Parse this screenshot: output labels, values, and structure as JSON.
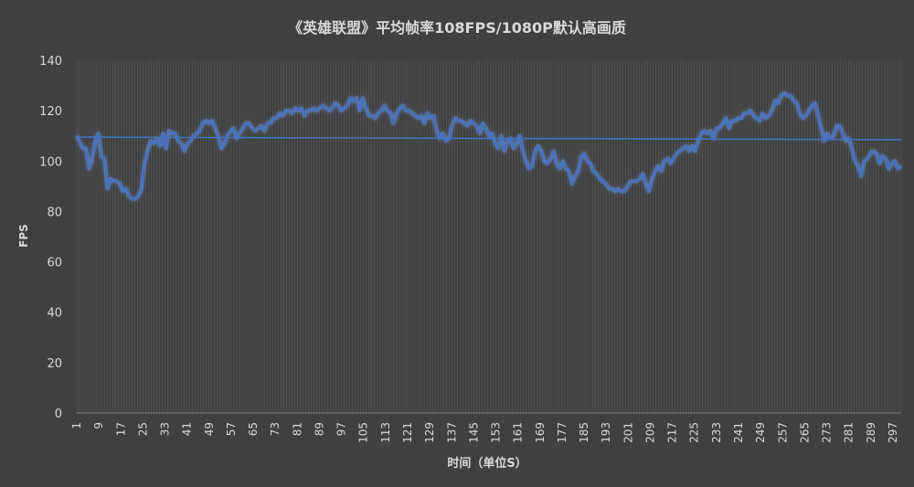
{
  "chart_data": {
    "type": "line",
    "title": "《英雄联盟》平均帧率108FPS/1080P默认高画质",
    "xlabel": "时间（单位S）",
    "ylabel": "FPS",
    "xlim": [
      1,
      300
    ],
    "ylim": [
      0,
      140
    ],
    "y_ticks": [
      0,
      20,
      40,
      60,
      80,
      100,
      120,
      140
    ],
    "x_tick_labels": [
      1,
      9,
      17,
      25,
      33,
      41,
      49,
      57,
      65,
      73,
      81,
      89,
      97,
      105,
      113,
      121,
      129,
      137,
      145,
      153,
      161,
      169,
      177,
      185,
      193,
      201,
      209,
      217,
      225,
      233,
      241,
      249,
      257,
      265,
      273,
      281,
      289,
      297
    ],
    "grid": "vertical-minor",
    "colors": {
      "background": "#404040",
      "grid": "#5a5a5a",
      "series": "#4472c4",
      "glow": "#6f9df0",
      "text": "#d9d9d9"
    },
    "series": [
      {
        "key_points": [
          [
            1,
            110
          ],
          [
            3,
            105
          ],
          [
            4,
            105
          ],
          [
            5,
            97
          ],
          [
            6,
            101
          ],
          [
            7,
            108
          ],
          [
            8,
            111
          ],
          [
            9,
            102
          ],
          [
            10,
            101
          ],
          [
            11,
            89
          ],
          [
            12,
            93
          ],
          [
            13,
            92
          ],
          [
            14,
            92
          ],
          [
            15,
            91
          ],
          [
            16,
            88
          ],
          [
            17,
            89
          ],
          [
            18,
            86
          ],
          [
            19,
            85
          ],
          [
            20,
            85
          ],
          [
            21,
            86
          ],
          [
            22,
            89
          ],
          [
            23,
            99
          ],
          [
            24,
            104
          ],
          [
            25,
            108
          ],
          [
            26,
            107
          ],
          [
            27,
            109
          ],
          [
            28,
            106
          ],
          [
            29,
            111
          ],
          [
            30,
            105
          ],
          [
            31,
            112
          ],
          [
            32,
            111
          ],
          [
            33,
            111
          ],
          [
            34,
            108
          ],
          [
            35,
            107
          ],
          [
            36,
            104
          ],
          [
            37,
            107
          ],
          [
            38,
            108
          ],
          [
            39,
            110
          ],
          [
            40,
            111
          ],
          [
            41,
            112
          ],
          [
            42,
            115
          ],
          [
            43,
            116
          ],
          [
            44,
            115
          ],
          [
            45,
            116
          ],
          [
            46,
            113
          ],
          [
            47,
            110
          ],
          [
            48,
            105
          ],
          [
            49,
            107
          ],
          [
            50,
            110
          ],
          [
            51,
            112
          ],
          [
            52,
            113
          ],
          [
            53,
            109
          ],
          [
            54,
            111
          ],
          [
            55,
            113
          ],
          [
            56,
            115
          ],
          [
            57,
            115
          ],
          [
            58,
            113
          ],
          [
            59,
            112
          ],
          [
            60,
            113
          ],
          [
            61,
            114
          ],
          [
            62,
            112
          ],
          [
            63,
            115
          ],
          [
            64,
            115
          ],
          [
            65,
            117
          ],
          [
            66,
            117
          ],
          [
            67,
            119
          ],
          [
            68,
            118
          ],
          [
            69,
            120
          ],
          [
            70,
            120
          ],
          [
            71,
            119
          ],
          [
            72,
            121
          ],
          [
            73,
            120
          ],
          [
            74,
            121
          ],
          [
            75,
            118
          ],
          [
            76,
            120
          ],
          [
            77,
            120
          ],
          [
            78,
            121
          ],
          [
            79,
            120
          ],
          [
            80,
            121
          ],
          [
            81,
            122
          ],
          [
            82,
            121
          ],
          [
            83,
            120
          ],
          [
            84,
            121
          ],
          [
            85,
            123
          ],
          [
            86,
            122
          ],
          [
            87,
            120
          ],
          [
            88,
            121
          ],
          [
            89,
            122
          ],
          [
            90,
            125
          ],
          [
            91,
            124
          ],
          [
            92,
            125
          ],
          [
            93,
            120
          ],
          [
            94,
            125
          ],
          [
            95,
            121
          ],
          [
            96,
            118
          ],
          [
            97,
            118
          ],
          [
            98,
            117
          ],
          [
            99,
            119
          ],
          [
            100,
            120
          ],
          [
            101,
            122
          ],
          [
            102,
            120
          ],
          [
            103,
            119
          ],
          [
            104,
            115
          ],
          [
            105,
            119
          ],
          [
            106,
            121
          ],
          [
            107,
            122
          ],
          [
            108,
            120
          ],
          [
            109,
            120
          ],
          [
            110,
            119
          ],
          [
            111,
            118
          ],
          [
            112,
            117
          ],
          [
            113,
            118
          ],
          [
            114,
            115
          ],
          [
            115,
            119
          ],
          [
            116,
            117
          ],
          [
            117,
            118
          ],
          [
            118,
            112
          ],
          [
            119,
            109
          ],
          [
            120,
            111
          ],
          [
            121,
            108
          ],
          [
            122,
            109
          ],
          [
            123,
            114
          ],
          [
            124,
            117
          ],
          [
            125,
            116
          ],
          [
            126,
            116
          ],
          [
            127,
            115
          ],
          [
            128,
            114
          ],
          [
            129,
            116
          ],
          [
            130,
            115
          ],
          [
            131,
            114
          ],
          [
            132,
            111
          ],
          [
            133,
            115
          ],
          [
            134,
            113
          ],
          [
            135,
            110
          ],
          [
            136,
            111
          ],
          [
            137,
            107
          ],
          [
            138,
            105
          ],
          [
            139,
            110
          ],
          [
            140,
            104
          ],
          [
            141,
            108
          ],
          [
            142,
            109
          ],
          [
            143,
            105
          ],
          [
            144,
            107
          ],
          [
            145,
            110
          ],
          [
            146,
            104
          ],
          [
            147,
            100
          ],
          [
            148,
            97
          ],
          [
            149,
            98
          ],
          [
            150,
            104
          ],
          [
            151,
            106
          ],
          [
            152,
            104
          ],
          [
            153,
            100
          ],
          [
            154,
            99
          ],
          [
            155,
            101
          ],
          [
            156,
            104
          ],
          [
            157,
            99
          ],
          [
            158,
            97
          ],
          [
            159,
            100
          ],
          [
            160,
            97
          ],
          [
            161,
            96
          ],
          [
            162,
            91
          ],
          [
            163,
            94
          ],
          [
            164,
            96
          ],
          [
            165,
            102
          ],
          [
            166,
            103
          ],
          [
            167,
            100
          ],
          [
            168,
            99
          ],
          [
            169,
            96
          ],
          [
            170,
            95
          ],
          [
            171,
            93
          ],
          [
            172,
            92
          ],
          [
            173,
            91
          ],
          [
            174,
            89
          ],
          [
            175,
            89
          ],
          [
            176,
            88
          ],
          [
            177,
            89
          ],
          [
            178,
            88
          ],
          [
            179,
            88
          ],
          [
            180,
            90
          ],
          [
            181,
            92
          ],
          [
            182,
            92
          ],
          [
            183,
            92
          ],
          [
            184,
            93
          ],
          [
            185,
            95
          ],
          [
            186,
            91
          ],
          [
            187,
            88
          ],
          [
            188,
            93
          ],
          [
            189,
            96
          ],
          [
            190,
            98
          ],
          [
            191,
            96
          ],
          [
            192,
            100
          ],
          [
            193,
            101
          ],
          [
            194,
            99
          ],
          [
            195,
            101
          ],
          [
            196,
            103
          ],
          [
            197,
            104
          ],
          [
            198,
            105
          ],
          [
            199,
            106
          ],
          [
            200,
            104
          ],
          [
            201,
            106
          ],
          [
            202,
            104
          ],
          [
            203,
            108
          ],
          [
            204,
            111
          ],
          [
            205,
            112
          ],
          [
            206,
            111
          ],
          [
            207,
            112
          ],
          [
            208,
            109
          ],
          [
            209,
            113
          ],
          [
            210,
            113
          ],
          [
            211,
            115
          ],
          [
            212,
            117
          ],
          [
            213,
            113
          ],
          [
            214,
            116
          ],
          [
            215,
            116
          ],
          [
            216,
            117
          ],
          [
            217,
            117
          ],
          [
            218,
            119
          ],
          [
            219,
            119
          ],
          [
            220,
            120
          ],
          [
            221,
            118
          ],
          [
            222,
            117
          ],
          [
            223,
            116
          ],
          [
            224,
            119
          ],
          [
            225,
            117
          ],
          [
            226,
            118
          ],
          [
            227,
            120
          ],
          [
            228,
            124
          ],
          [
            229,
            123
          ],
          [
            230,
            126
          ],
          [
            231,
            127
          ],
          [
            232,
            126
          ],
          [
            233,
            126
          ],
          [
            234,
            124
          ],
          [
            235,
            123
          ],
          [
            236,
            119
          ],
          [
            237,
            117
          ],
          [
            238,
            118
          ],
          [
            239,
            120
          ],
          [
            240,
            122
          ],
          [
            241,
            123
          ],
          [
            242,
            118
          ],
          [
            243,
            113
          ],
          [
            244,
            108
          ],
          [
            245,
            111
          ],
          [
            246,
            109
          ],
          [
            247,
            110
          ],
          [
            248,
            114
          ],
          [
            249,
            114
          ],
          [
            250,
            111
          ],
          [
            251,
            108
          ],
          [
            252,
            109
          ],
          [
            253,
            105
          ],
          [
            254,
            100
          ],
          [
            255,
            98
          ],
          [
            256,
            94
          ],
          [
            257,
            100
          ],
          [
            258,
            101
          ],
          [
            259,
            103
          ],
          [
            260,
            104
          ],
          [
            261,
            103
          ],
          [
            262,
            99
          ],
          [
            263,
            102
          ],
          [
            264,
            101
          ],
          [
            265,
            97
          ],
          [
            266,
            99
          ],
          [
            267,
            100
          ],
          [
            268,
            97
          ],
          [
            269,
            98
          ]
        ]
      },
      {
        "key_points": [
          [
            1,
            109.5
          ],
          [
            269,
            108.5
          ]
        ]
      }
    ]
  }
}
